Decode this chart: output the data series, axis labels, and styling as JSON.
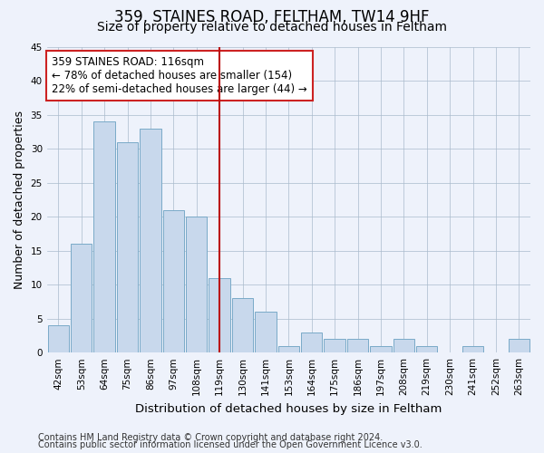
{
  "title1": "359, STAINES ROAD, FELTHAM, TW14 9HF",
  "title2": "Size of property relative to detached houses in Feltham",
  "xlabel": "Distribution of detached houses by size in Feltham",
  "ylabel": "Number of detached properties",
  "categories": [
    "42sqm",
    "53sqm",
    "64sqm",
    "75sqm",
    "86sqm",
    "97sqm",
    "108sqm",
    "119sqm",
    "130sqm",
    "141sqm",
    "153sqm",
    "164sqm",
    "175sqm",
    "186sqm",
    "197sqm",
    "208sqm",
    "219sqm",
    "230sqm",
    "241sqm",
    "252sqm",
    "263sqm"
  ],
  "values": [
    4,
    16,
    34,
    31,
    33,
    21,
    20,
    11,
    8,
    6,
    1,
    3,
    2,
    2,
    1,
    2,
    1,
    0,
    1,
    0,
    2
  ],
  "bar_color": "#c8d8ec",
  "bar_edge_color": "#7aaac8",
  "vline_x": 7,
  "vline_color": "#bb1111",
  "annotation_text": "359 STAINES ROAD: 116sqm\n← 78% of detached houses are smaller (154)\n22% of semi-detached houses are larger (44) →",
  "annotation_box_color": "#ffffff",
  "annotation_box_edge_color": "#cc2222",
  "ylim": [
    0,
    45
  ],
  "yticks": [
    0,
    5,
    10,
    15,
    20,
    25,
    30,
    35,
    40,
    45
  ],
  "footer1": "Contains HM Land Registry data © Crown copyright and database right 2024.",
  "footer2": "Contains public sector information licensed under the Open Government Licence v3.0.",
  "bg_color": "#eef2fb",
  "plot_bg_color": "#eef2fb",
  "title1_fontsize": 12,
  "title2_fontsize": 10,
  "xlabel_fontsize": 9.5,
  "ylabel_fontsize": 9,
  "tick_fontsize": 7.5,
  "annotation_fontsize": 8.5,
  "footer_fontsize": 7
}
